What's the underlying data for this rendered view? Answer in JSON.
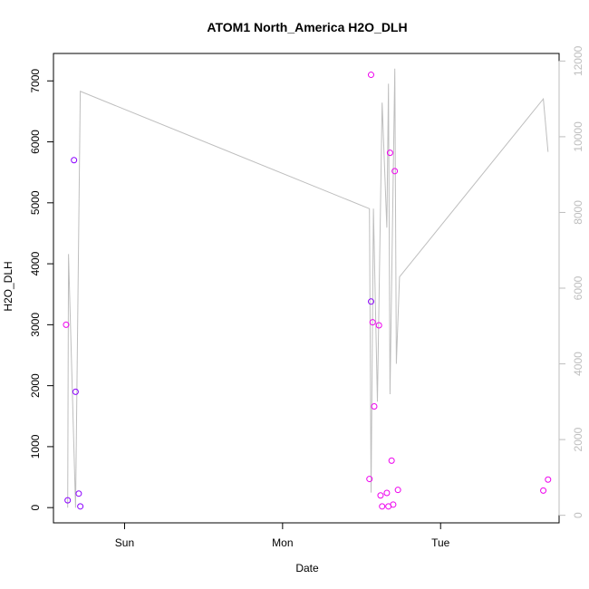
{
  "chart_data": {
    "type": "scatter",
    "title": "ATOM1 North_America H2O_DLH",
    "xlabel": "Date",
    "ylabel": "H2O_DLH",
    "x_ticks": [
      {
        "label": "Sun",
        "t": 1.0
      },
      {
        "label": "Mon",
        "t": 2.0
      },
      {
        "label": "Tue",
        "t": 3.0
      }
    ],
    "xlim": [
      0.55,
      3.75
    ],
    "ylim": [
      -250,
      7450
    ],
    "y_ticks": [
      0,
      1000,
      2000,
      3000,
      4000,
      5000,
      6000,
      7000
    ],
    "y2lim": [
      -200,
      12200
    ],
    "y2_ticks": [
      0,
      2000,
      4000,
      6000,
      8000,
      10000,
      12000
    ],
    "colors": {
      "points_a": "#8b00ff",
      "points_b": "#ee00ee",
      "line": "#bebebe",
      "right_axis": "#bebebe"
    },
    "series": [
      {
        "type": "scatter",
        "color_key": "points_a",
        "points": [
          {
            "t": 0.64,
            "y": 120
          },
          {
            "t": 0.68,
            "y": 5700
          },
          {
            "t": 0.69,
            "y": 1900
          },
          {
            "t": 0.71,
            "y": 230
          },
          {
            "t": 0.72,
            "y": 20
          },
          {
            "t": 2.56,
            "y": 3380
          }
        ]
      },
      {
        "type": "scatter",
        "color_key": "points_b",
        "points": [
          {
            "t": 0.63,
            "y": 3000
          },
          {
            "t": 2.55,
            "y": 470
          },
          {
            "t": 2.56,
            "y": 7100
          },
          {
            "t": 2.57,
            "y": 3040
          },
          {
            "t": 2.58,
            "y": 1660
          },
          {
            "t": 2.61,
            "y": 2990
          },
          {
            "t": 2.62,
            "y": 200
          },
          {
            "t": 2.63,
            "y": 20
          },
          {
            "t": 2.66,
            "y": 240
          },
          {
            "t": 2.67,
            "y": 20
          },
          {
            "t": 2.68,
            "y": 5820
          },
          {
            "t": 2.69,
            "y": 770
          },
          {
            "t": 2.7,
            "y": 50
          },
          {
            "t": 2.71,
            "y": 5520
          },
          {
            "t": 2.73,
            "y": 290
          },
          {
            "t": 3.65,
            "y": 280
          },
          {
            "t": 3.68,
            "y": 460
          }
        ]
      },
      {
        "type": "line",
        "axis": "right",
        "color_key": "line",
        "points": [
          {
            "t": 0.64,
            "y2": 200
          },
          {
            "t": 0.645,
            "y2": 6900
          },
          {
            "t": 0.69,
            "y2": 200
          },
          {
            "t": 0.72,
            "y2": 11200
          },
          {
            "t": 2.55,
            "y2": 8100
          },
          {
            "t": 2.56,
            "y2": 600
          },
          {
            "t": 2.575,
            "y2": 8100
          },
          {
            "t": 2.6,
            "y2": 3000
          },
          {
            "t": 2.63,
            "y2": 10900
          },
          {
            "t": 2.66,
            "y2": 7600
          },
          {
            "t": 2.67,
            "y2": 11400
          },
          {
            "t": 2.68,
            "y2": 3200
          },
          {
            "t": 2.71,
            "y2": 11800
          },
          {
            "t": 2.72,
            "y2": 4000
          },
          {
            "t": 2.74,
            "y2": 6300
          },
          {
            "t": 3.65,
            "y2": 11000
          },
          {
            "t": 3.68,
            "y2": 9600
          }
        ]
      }
    ]
  }
}
